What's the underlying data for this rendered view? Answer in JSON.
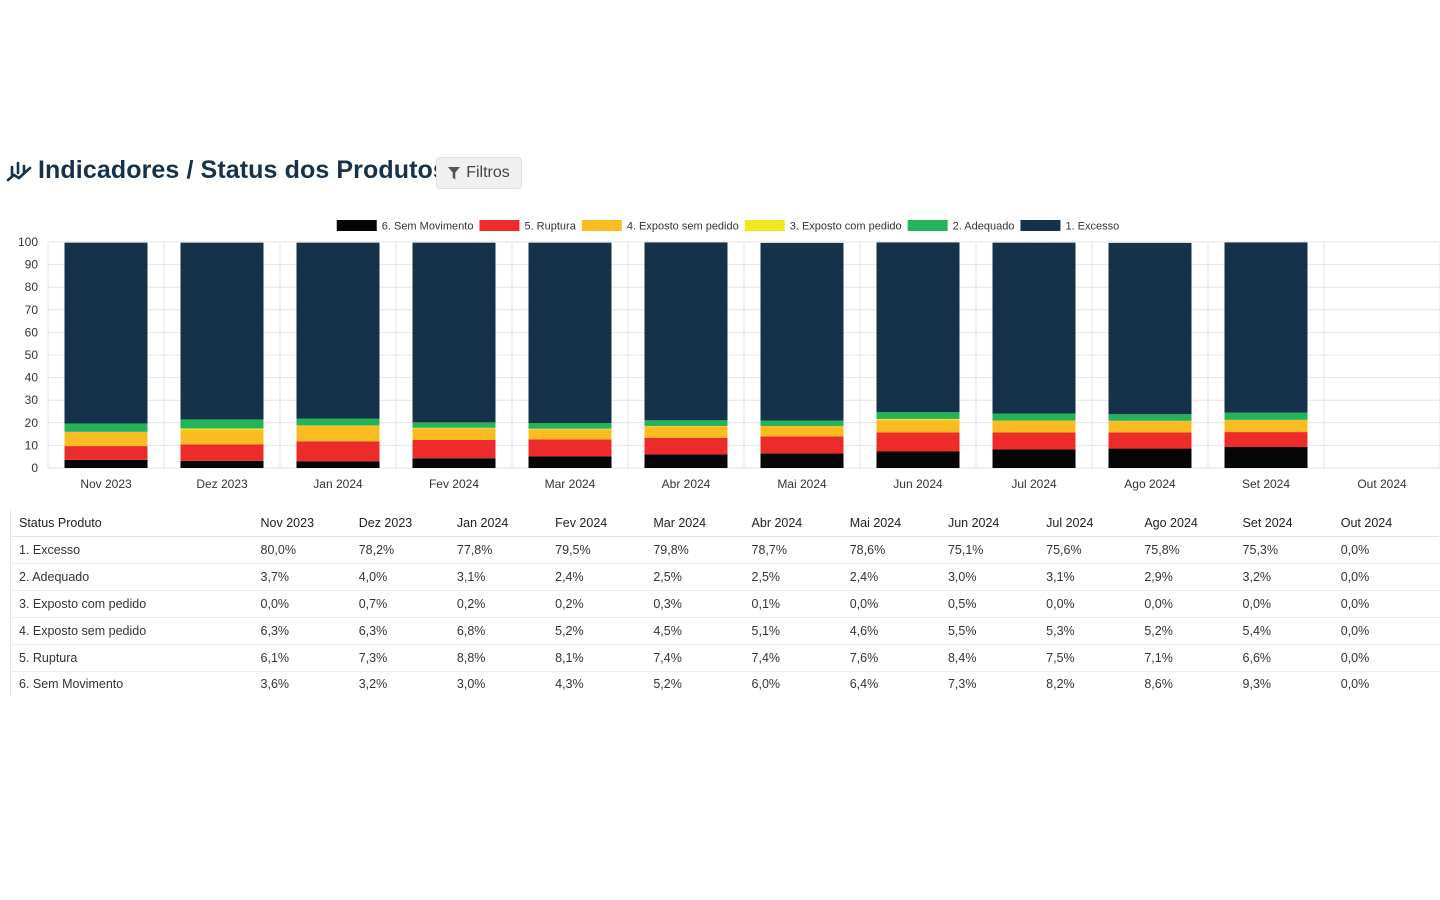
{
  "header": {
    "title": "Indicadores / Status dos Produtos",
    "filter_label": "Filtros"
  },
  "colors": {
    "title": "#15324a",
    "excesso": "#15324a",
    "adequado": "#22b35b",
    "exposto_com_pedido": "#f0e81e",
    "exposto_sem_pedido": "#fbbb22",
    "ruptura": "#ee2b2b",
    "sem_movimento": "#050505"
  },
  "chart_data": {
    "type": "bar",
    "stacked": true,
    "categories": [
      "Nov 2023",
      "Dez 2023",
      "Jan 2024",
      "Fev 2024",
      "Mar 2024",
      "Abr 2024",
      "Mai 2024",
      "Jun 2024",
      "Jul 2024",
      "Ago 2024",
      "Set 2024",
      "Out 2024"
    ],
    "ylim": [
      0,
      100
    ],
    "yticks": [
      0,
      10,
      20,
      30,
      40,
      50,
      60,
      70,
      80,
      90,
      100
    ],
    "grid": true,
    "legend_position": "top-center",
    "legend": [
      "6. Sem Movimento",
      "5. Ruptura",
      "4. Exposto sem pedido",
      "3. Exposto com pedido",
      "2. Adequado",
      "1. Excesso"
    ],
    "series": [
      {
        "name": "6. Sem Movimento",
        "color": "#050505",
        "values": [
          3.6,
          3.2,
          3.0,
          4.3,
          5.2,
          6.0,
          6.4,
          7.3,
          8.2,
          8.6,
          9.3,
          0.0
        ]
      },
      {
        "name": "5. Ruptura",
        "color": "#ee2b2b",
        "values": [
          6.1,
          7.3,
          8.8,
          8.1,
          7.4,
          7.4,
          7.6,
          8.4,
          7.5,
          7.1,
          6.6,
          0.0
        ]
      },
      {
        "name": "4. Exposto sem pedido",
        "color": "#fbbb22",
        "values": [
          6.3,
          6.3,
          6.8,
          5.2,
          4.5,
          5.1,
          4.6,
          5.5,
          5.3,
          5.2,
          5.4,
          0.0
        ]
      },
      {
        "name": "3. Exposto com pedido",
        "color": "#f0e81e",
        "values": [
          0.0,
          0.7,
          0.2,
          0.2,
          0.3,
          0.1,
          0.0,
          0.5,
          0.0,
          0.0,
          0.0,
          0.0
        ]
      },
      {
        "name": "2. Adequado",
        "color": "#22b35b",
        "values": [
          3.7,
          4.0,
          3.1,
          2.4,
          2.5,
          2.5,
          2.4,
          3.0,
          3.1,
          2.9,
          3.2,
          0.0
        ]
      },
      {
        "name": "1. Excesso",
        "color": "#15324a",
        "values": [
          80.0,
          78.2,
          77.8,
          79.5,
          79.8,
          78.7,
          78.6,
          75.1,
          75.6,
          75.8,
          75.3,
          0.0
        ]
      }
    ]
  },
  "table": {
    "header_label": "Status Produto",
    "columns": [
      "Nov 2023",
      "Dez 2023",
      "Jan 2024",
      "Fev 2024",
      "Mar 2024",
      "Abr 2024",
      "Mai 2024",
      "Jun 2024",
      "Jul 2024",
      "Ago 2024",
      "Set 2024",
      "Out 2024"
    ],
    "rows": [
      {
        "label": "1. Excesso",
        "values": [
          "80,0%",
          "78,2%",
          "77,8%",
          "79,5%",
          "79,8%",
          "78,7%",
          "78,6%",
          "75,1%",
          "75,6%",
          "75,8%",
          "75,3%",
          "0,0%"
        ]
      },
      {
        "label": "2. Adequado",
        "values": [
          "3,7%",
          "4,0%",
          "3,1%",
          "2,4%",
          "2,5%",
          "2,5%",
          "2,4%",
          "3,0%",
          "3,1%",
          "2,9%",
          "3,2%",
          "0,0%"
        ]
      },
      {
        "label": "3. Exposto com pedido",
        "values": [
          "0,0%",
          "0,7%",
          "0,2%",
          "0,2%",
          "0,3%",
          "0,1%",
          "0,0%",
          "0,5%",
          "0,0%",
          "0,0%",
          "0,0%",
          "0,0%"
        ]
      },
      {
        "label": "4. Exposto sem pedido",
        "values": [
          "6,3%",
          "6,3%",
          "6,8%",
          "5,2%",
          "4,5%",
          "5,1%",
          "4,6%",
          "5,5%",
          "5,3%",
          "5,2%",
          "5,4%",
          "0,0%"
        ]
      },
      {
        "label": "5. Ruptura",
        "values": [
          "6,1%",
          "7,3%",
          "8,8%",
          "8,1%",
          "7,4%",
          "7,4%",
          "7,6%",
          "8,4%",
          "7,5%",
          "7,1%",
          "6,6%",
          "0,0%"
        ]
      },
      {
        "label": "6. Sem Movimento",
        "values": [
          "3,6%",
          "3,2%",
          "3,0%",
          "4,3%",
          "5,2%",
          "6,0%",
          "6,4%",
          "7,3%",
          "8,2%",
          "8,6%",
          "9,3%",
          "0,0%"
        ]
      }
    ]
  }
}
